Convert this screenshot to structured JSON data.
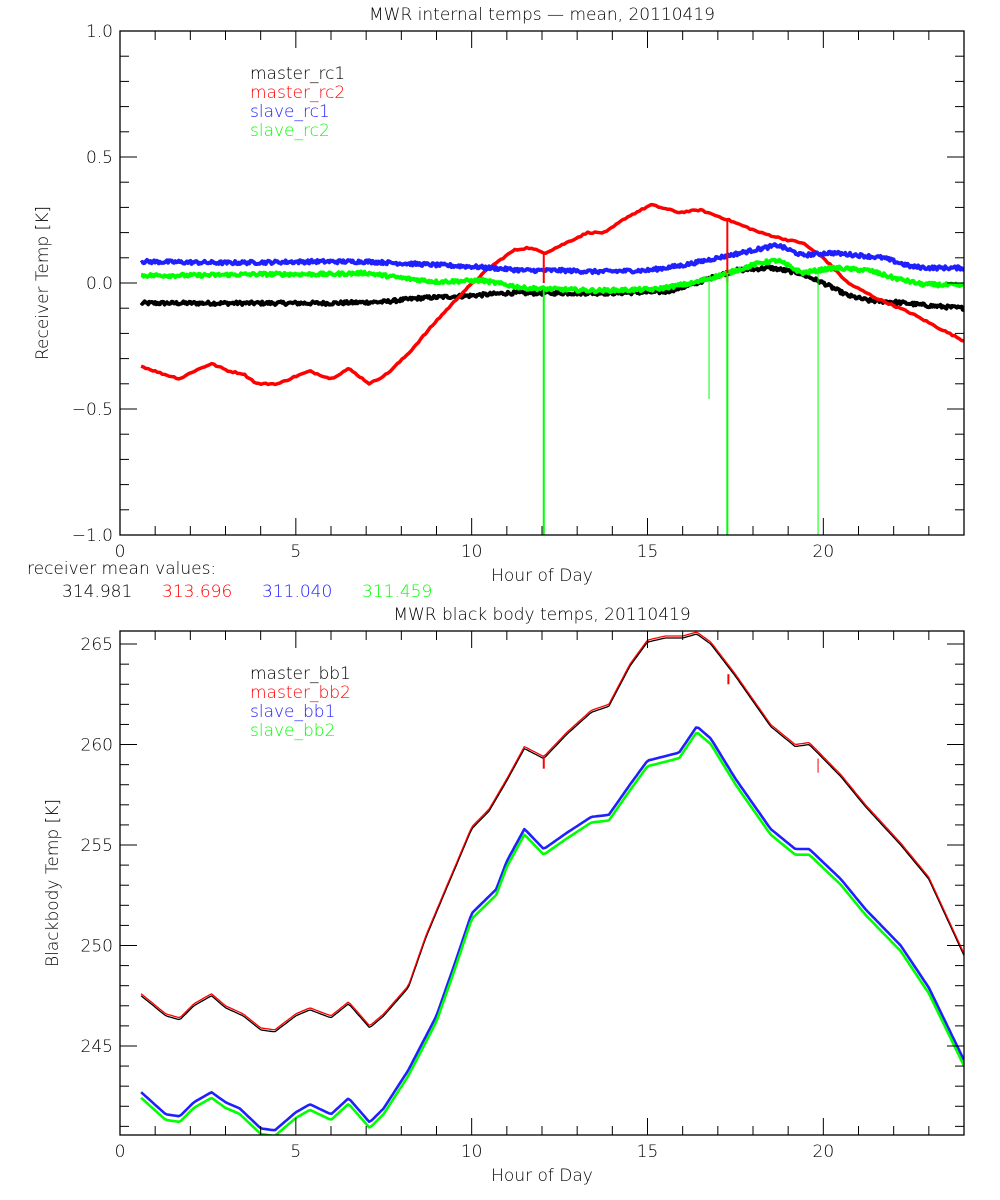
{
  "chart_data": [
    {
      "type": "line",
      "title": "MWR internal temps — mean, 20110419",
      "xlabel": "Hour of Day",
      "ylabel": "Receiver Temp [K]",
      "xlim": [
        0,
        24
      ],
      "ylim": [
        -1.0,
        1.0
      ],
      "xticks": [
        0,
        5,
        10,
        15,
        20
      ],
      "xtick_labels": [
        "0",
        "5",
        "10",
        "15",
        "20"
      ],
      "yticks": [
        -1.0,
        -0.5,
        0.0,
        0.5,
        1.0
      ],
      "ytick_labels": [
        "−1.0",
        "−0.5",
        "0.0",
        "0.5",
        "1.0"
      ],
      "grid": false,
      "legend_position": "top-left",
      "series": [
        {
          "name": "master_rc1",
          "color": "#000000",
          "noisy": true,
          "x": [
            0.6,
            2,
            4,
            6,
            7.5,
            8.5,
            10,
            11,
            12,
            13,
            14,
            15.5,
            16.2,
            16.8,
            17.5,
            18.5,
            19.3,
            20,
            20.7,
            21.3,
            22,
            23,
            24
          ],
          "y": [
            -0.08,
            -0.08,
            -0.08,
            -0.08,
            -0.075,
            -0.06,
            -0.05,
            -0.04,
            -0.04,
            -0.04,
            -0.04,
            -0.035,
            -0.01,
            0.02,
            0.05,
            0.06,
            0.04,
            0.0,
            -0.05,
            -0.07,
            -0.075,
            -0.09,
            -0.1
          ]
        },
        {
          "name": "master_rc2",
          "color": "#ff0000",
          "noisy": false,
          "x": [
            0.6,
            1.2,
            1.7,
            2.1,
            2.6,
            3.1,
            3.5,
            3.9,
            4.5,
            5.0,
            5.4,
            6.0,
            6.5,
            7.1,
            7.6,
            8.2,
            9.0,
            9.8,
            10.5,
            11.2,
            11.6,
            12.1,
            12.7,
            13.3,
            13.8,
            14.4,
            15.1,
            15.9,
            16.5,
            17.3,
            18.2,
            19.0,
            19.4,
            20.0,
            20.7,
            21.5,
            22.5,
            23.3,
            24.0
          ],
          "y": [
            -0.33,
            -0.36,
            -0.38,
            -0.35,
            -0.32,
            -0.35,
            -0.36,
            -0.4,
            -0.4,
            -0.37,
            -0.35,
            -0.38,
            -0.34,
            -0.4,
            -0.36,
            -0.28,
            -0.15,
            -0.03,
            0.06,
            0.13,
            0.14,
            0.12,
            0.16,
            0.2,
            0.2,
            0.26,
            0.31,
            0.28,
            0.29,
            0.25,
            0.2,
            0.17,
            0.16,
            0.1,
            0.0,
            -0.06,
            -0.12,
            -0.18,
            -0.23
          ]
        },
        {
          "name": "slave_rc1",
          "color": "#2020ff",
          "noisy": true,
          "x": [
            0.6,
            3,
            5.5,
            7,
            8.5,
            10,
            11.5,
            12.5,
            13.5,
            15,
            16,
            17,
            18,
            18.7,
            19.4,
            20.2,
            21,
            21.7,
            22.5,
            23,
            24
          ],
          "y": [
            0.085,
            0.08,
            0.085,
            0.085,
            0.075,
            0.065,
            0.05,
            0.05,
            0.045,
            0.05,
            0.07,
            0.1,
            0.13,
            0.15,
            0.11,
            0.12,
            0.11,
            0.1,
            0.065,
            0.06,
            0.06
          ]
        },
        {
          "name": "slave_rc2",
          "color": "#00ff00",
          "noisy": true,
          "x": [
            0.6,
            2,
            4,
            6,
            7.0,
            8,
            9,
            10.3,
            11.5,
            12.5,
            13.5,
            15.2,
            16.3,
            17.3,
            18.2,
            18.7,
            19.4,
            20.3,
            21.3,
            22,
            22.8,
            24
          ],
          "y": [
            0.03,
            0.03,
            0.035,
            0.035,
            0.04,
            0.02,
            0.005,
            0.01,
            -0.02,
            -0.025,
            -0.03,
            -0.025,
            0.0,
            0.04,
            0.08,
            0.09,
            0.04,
            0.06,
            0.05,
            0.02,
            -0.005,
            -0.01
          ]
        }
      ],
      "spikes": [
        {
          "series": "slave_rc2",
          "x": 12.05,
          "from": -0.02,
          "to": -1.0,
          "color": "#00ff00",
          "width": 2
        },
        {
          "series": "master_rc2",
          "x": 12.05,
          "from": 0.12,
          "to": 0.0,
          "color": "#ff0000",
          "width": 2
        },
        {
          "series": "slave_rc2",
          "x": 16.75,
          "from": 0.02,
          "to": -0.46,
          "color": "#00ff00",
          "width": 1
        },
        {
          "series": "master_rc2",
          "x": 17.27,
          "from": 0.25,
          "to": 0.0,
          "color": "#ff0000",
          "width": 2
        },
        {
          "series": "slave_rc2",
          "x": 17.27,
          "from": 0.04,
          "to": -1.0,
          "color": "#00ff00",
          "width": 2
        },
        {
          "series": "slave_rc2",
          "x": 19.85,
          "from": 0.06,
          "to": -1.0,
          "color": "#00ff00",
          "width": 1
        }
      ],
      "annotation": {
        "label": "receiver mean values:",
        "values": [
          {
            "text": "314.981",
            "color": "#000000"
          },
          {
            "text": "313.696",
            "color": "#ff0000"
          },
          {
            "text": "311.040",
            "color": "#2020ff"
          },
          {
            "text": "311.459",
            "color": "#00ff00"
          }
        ]
      }
    },
    {
      "type": "line",
      "title": "MWR black body temps, 20110419",
      "xlabel": "Hour of Day",
      "ylabel": "Blackbody Temp [K]",
      "xlim": [
        0,
        24
      ],
      "ylim": [
        240.57,
        265.65
      ],
      "xticks": [
        0,
        5,
        10,
        15,
        20
      ],
      "xtick_labels": [
        "0",
        "5",
        "10",
        "15",
        "20"
      ],
      "yticks": [
        245,
        250,
        255,
        260,
        265
      ],
      "ytick_labels": [
        "245",
        "250",
        "255",
        "260",
        "265"
      ],
      "grid": false,
      "legend_position": "top-left",
      "series": [
        {
          "name": "master_bb1",
          "color": "#000000",
          "offset": -0.1,
          "x": [
            0.6,
            1.3,
            1.7,
            2.1,
            2.6,
            3.0,
            3.5,
            4.0,
            4.4,
            5.0,
            5.4,
            6.0,
            6.5,
            7.1,
            7.5,
            8.2,
            8.7,
            9.3,
            10.0,
            10.5,
            11.0,
            11.5,
            12.05,
            12.7,
            13.4,
            13.9,
            14.5,
            15.0,
            15.5,
            16.0,
            16.4,
            16.8,
            17.5,
            18.5,
            19.2,
            19.6,
            20.5,
            21.2,
            22.2,
            23.0,
            24.0
          ],
          "y": [
            247.6,
            246.6,
            246.4,
            247.1,
            247.6,
            247.0,
            246.6,
            245.9,
            245.8,
            246.6,
            246.9,
            246.5,
            247.2,
            246.0,
            246.6,
            248.0,
            250.5,
            253.0,
            255.9,
            256.8,
            258.3,
            259.9,
            259.4,
            260.6,
            261.7,
            262.0,
            264.0,
            265.2,
            265.4,
            265.4,
            265.6,
            265.1,
            263.5,
            261.0,
            260.0,
            260.1,
            258.5,
            257.0,
            255.1,
            253.4,
            249.6
          ]
        },
        {
          "name": "master_bb2",
          "color": "#ff0000",
          "offset": 0.0,
          "x": [
            0.6,
            1.3,
            1.7,
            2.1,
            2.6,
            3.0,
            3.5,
            4.0,
            4.4,
            5.0,
            5.4,
            6.0,
            6.5,
            7.1,
            7.5,
            8.2,
            8.7,
            9.3,
            10.0,
            10.5,
            11.0,
            11.5,
            12.05,
            12.7,
            13.4,
            13.9,
            14.5,
            15.0,
            15.5,
            16.0,
            16.4,
            16.8,
            17.5,
            18.5,
            19.2,
            19.6,
            20.5,
            21.2,
            22.2,
            23.0,
            24.0
          ],
          "y": [
            247.6,
            246.6,
            246.4,
            247.1,
            247.6,
            247.0,
            246.6,
            245.9,
            245.8,
            246.6,
            246.9,
            246.5,
            247.2,
            246.0,
            246.6,
            248.0,
            250.5,
            253.0,
            255.9,
            256.8,
            258.3,
            259.9,
            259.4,
            260.6,
            261.7,
            262.0,
            264.0,
            265.2,
            265.4,
            265.4,
            265.6,
            265.1,
            263.5,
            261.0,
            260.0,
            260.1,
            258.5,
            257.0,
            255.1,
            253.4,
            249.6
          ]
        },
        {
          "name": "slave_bb1",
          "color": "#2020ff",
          "offset": 0.0,
          "x": [
            0.6,
            1.3,
            1.7,
            2.1,
            2.6,
            3.0,
            3.4,
            4.0,
            4.4,
            5.0,
            5.4,
            6.0,
            6.5,
            7.1,
            7.5,
            8.2,
            9.0,
            9.5,
            10.0,
            10.7,
            11.0,
            11.5,
            12.05,
            12.7,
            13.4,
            13.9,
            14.5,
            15.0,
            15.9,
            16.4,
            16.8,
            17.5,
            18.5,
            19.2,
            19.6,
            20.5,
            21.2,
            22.2,
            23.0,
            24.0
          ],
          "y": [
            242.7,
            241.6,
            241.5,
            242.2,
            242.7,
            242.2,
            241.9,
            240.9,
            240.8,
            241.7,
            242.1,
            241.6,
            242.4,
            241.2,
            241.9,
            243.8,
            246.5,
            249.0,
            251.6,
            252.8,
            254.2,
            255.8,
            254.8,
            255.6,
            256.4,
            256.5,
            258.0,
            259.2,
            259.6,
            260.9,
            260.3,
            258.3,
            255.8,
            254.8,
            254.8,
            253.3,
            251.8,
            250.0,
            247.9,
            244.3
          ]
        },
        {
          "name": "slave_bb2",
          "color": "#00ff00",
          "offset": -0.28,
          "x": [
            0.6,
            1.3,
            1.7,
            2.1,
            2.6,
            3.0,
            3.4,
            4.0,
            4.4,
            5.0,
            5.4,
            6.0,
            6.5,
            7.1,
            7.5,
            8.2,
            9.0,
            9.5,
            10.0,
            10.7,
            11.0,
            11.5,
            12.05,
            12.7,
            13.4,
            13.9,
            14.5,
            15.0,
            15.9,
            16.4,
            16.8,
            17.5,
            18.5,
            19.2,
            19.6,
            20.5,
            21.2,
            22.2,
            23.0,
            24.0
          ],
          "y": [
            242.7,
            241.6,
            241.5,
            242.2,
            242.7,
            242.2,
            241.9,
            240.9,
            240.8,
            241.7,
            242.1,
            241.6,
            242.4,
            241.2,
            241.9,
            243.8,
            246.5,
            249.0,
            251.6,
            252.8,
            254.2,
            255.8,
            254.8,
            255.6,
            256.4,
            256.5,
            258.0,
            259.2,
            259.6,
            260.9,
            260.3,
            258.3,
            255.8,
            254.8,
            254.8,
            253.3,
            251.8,
            250.0,
            247.9,
            244.3
          ]
        }
      ],
      "spikes": [
        {
          "series": "master_bb2",
          "x": 12.05,
          "from": 259.4,
          "to": 258.8,
          "color": "#ff0000",
          "width": 2
        },
        {
          "series": "master_bb2",
          "x": 17.3,
          "from": 263.5,
          "to": 263.0,
          "color": "#ff0000",
          "width": 2
        },
        {
          "series": "master_bb2",
          "x": 19.85,
          "from": 259.3,
          "to": 258.6,
          "color": "#ff0000",
          "width": 1
        }
      ]
    }
  ]
}
